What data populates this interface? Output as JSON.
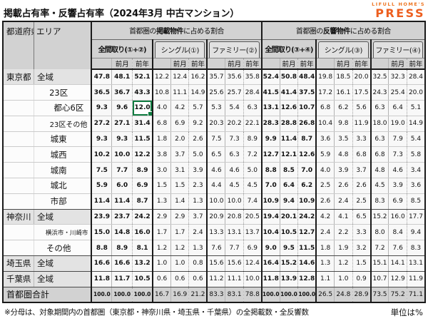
{
  "title": "掲載占有率・反響占有率（2024年3月 中古マンション）",
  "logo": {
    "line1": "LIFULL HOME'S",
    "line2": "PRESS",
    "color": "#ed5f1f"
  },
  "colors": {
    "header_gray": "#d2d2d2",
    "pref_row_gray": "#e3e3e3",
    "total_row_gray": "#d2d2d2",
    "selection_green": "#107c41",
    "brand_orange": "#ee7623"
  },
  "table": {
    "corner": {
      "pref": "都道府県",
      "area": "エリア"
    },
    "sub_cols": [
      "前月",
      "前年"
    ],
    "groups": [
      {
        "pre": "首都圏の",
        "em": "掲載物件",
        "post": "に占める割合",
        "subgroups": [
          "全間取り(①+②)",
          "シングル(①)",
          "ファミリー(②)"
        ]
      },
      {
        "pre": "首都圏の",
        "em": "反響物件",
        "post": "に占める割合",
        "subgroups": [
          "全間取り(③+④)",
          "シングル(③)",
          "ファミリー(④)"
        ]
      }
    ],
    "selected_cell": {
      "row": 2,
      "col": 2
    },
    "rows": [
      {
        "pref": "東京都",
        "area": "全域",
        "style": "pref",
        "values": [
          "47.8",
          "48.1",
          "52.1",
          "12.2",
          "12.4",
          "16.2",
          "35.7",
          "35.6",
          "35.8",
          "52.4",
          "50.8",
          "48.4",
          "19.8",
          "18.5",
          "20.0",
          "32.5",
          "32.3",
          "28.4"
        ]
      },
      {
        "area": "23区",
        "style": "center",
        "values": [
          "36.5",
          "36.7",
          "43.3",
          "10.8",
          "11.1",
          "14.9",
          "25.6",
          "25.7",
          "28.4",
          "41.5",
          "41.4",
          "37.5",
          "17.2",
          "16.1",
          "17.5",
          "24.3",
          "25.4",
          "20.0"
        ]
      },
      {
        "area": "都心6区",
        "style": "right",
        "values": [
          "9.3",
          "9.6",
          "12.0",
          "4.0",
          "4.2",
          "5.7",
          "5.3",
          "5.4",
          "6.3",
          "13.1",
          "12.6",
          "10.7",
          "6.8",
          "6.2",
          "5.6",
          "6.3",
          "6.4",
          "5.1"
        ]
      },
      {
        "area": "23区その他",
        "style": "right-sm",
        "values": [
          "27.2",
          "27.1",
          "31.4",
          "6.8",
          "6.9",
          "9.2",
          "20.3",
          "20.2",
          "22.1",
          "28.3",
          "28.8",
          "26.8",
          "10.4",
          "9.8",
          "11.9",
          "18.0",
          "19.0",
          "14.9"
        ]
      },
      {
        "area": "城東",
        "style": "center",
        "values": [
          "9.3",
          "9.3",
          "11.5",
          "1.8",
          "2.0",
          "2.6",
          "7.5",
          "7.3",
          "8.9",
          "9.9",
          "11.4",
          "8.7",
          "3.6",
          "3.5",
          "3.3",
          "6.3",
          "7.9",
          "5.4"
        ]
      },
      {
        "area": "城西",
        "style": "center",
        "values": [
          "10.2",
          "10.0",
          "12.2",
          "3.8",
          "3.7",
          "5.0",
          "6.5",
          "6.3",
          "7.2",
          "12.7",
          "12.1",
          "12.6",
          "5.9",
          "4.8",
          "6.8",
          "6.8",
          "7.3",
          "5.8"
        ]
      },
      {
        "area": "城南",
        "style": "center",
        "values": [
          "7.5",
          "7.7",
          "8.9",
          "3.0",
          "3.1",
          "3.9",
          "4.6",
          "4.6",
          "5.0",
          "8.8",
          "8.5",
          "7.0",
          "4.0",
          "3.9",
          "3.7",
          "4.8",
          "4.6",
          "3.4"
        ]
      },
      {
        "area": "城北",
        "style": "center",
        "values": [
          "5.9",
          "6.0",
          "6.9",
          "1.5",
          "1.5",
          "2.3",
          "4.4",
          "4.5",
          "4.5",
          "7.0",
          "6.4",
          "6.2",
          "2.5",
          "2.6",
          "2.6",
          "4.5",
          "3.9",
          "3.6"
        ]
      },
      {
        "area": "市部",
        "style": "center",
        "values": [
          "11.4",
          "11.4",
          "8.7",
          "1.3",
          "1.4",
          "1.3",
          "10.0",
          "10.0",
          "7.4",
          "10.9",
          "9.4",
          "10.9",
          "2.6",
          "2.4",
          "2.5",
          "8.3",
          "6.9",
          "8.5"
        ]
      },
      {
        "pref": "神奈川",
        "area": "全域",
        "style": "pref",
        "values": [
          "23.9",
          "23.7",
          "24.2",
          "2.9",
          "2.9",
          "3.7",
          "20.9",
          "20.8",
          "20.5",
          "19.4",
          "20.1",
          "24.2",
          "4.2",
          "4.1",
          "6.5",
          "15.2",
          "16.0",
          "17.7"
        ]
      },
      {
        "area": "横浜市・川崎市",
        "style": "right-xs",
        "values": [
          "15.0",
          "14.8",
          "16.0",
          "1.7",
          "1.7",
          "2.4",
          "13.3",
          "13.1",
          "13.7",
          "10.4",
          "10.5",
          "12.7",
          "2.4",
          "2.2",
          "3.3",
          "8.0",
          "8.4",
          "9.4"
        ]
      },
      {
        "area": "その他",
        "style": "center",
        "values": [
          "8.8",
          "8.9",
          "8.1",
          "1.2",
          "1.2",
          "1.3",
          "7.6",
          "7.7",
          "6.9",
          "9.0",
          "9.5",
          "11.5",
          "1.8",
          "1.9",
          "3.2",
          "7.2",
          "7.6",
          "8.3"
        ]
      },
      {
        "pref": "埼玉県",
        "area": "全域",
        "style": "pref",
        "values": [
          "16.6",
          "16.6",
          "13.2",
          "1.0",
          "1.0",
          "0.8",
          "15.6",
          "15.6",
          "12.4",
          "16.4",
          "15.2",
          "14.6",
          "1.3",
          "1.2",
          "1.5",
          "15.1",
          "14.1",
          "13.1"
        ]
      },
      {
        "pref": "千葉県",
        "area": "全域",
        "style": "pref",
        "values": [
          "11.8",
          "11.7",
          "10.5",
          "0.6",
          "0.6",
          "0.6",
          "11.2",
          "11.1",
          "10.0",
          "11.8",
          "13.9",
          "12.8",
          "1.1",
          "1.0",
          "0.9",
          "10.7",
          "12.9",
          "11.9"
        ]
      },
      {
        "label": "首都圏合計",
        "style": "total",
        "values": [
          "100.0",
          "100.0",
          "100.0",
          "16.7",
          "16.9",
          "21.2",
          "83.3",
          "83.1",
          "78.8",
          "100.0",
          "100.0",
          "100.0",
          "26.5",
          "24.8",
          "28.9",
          "73.5",
          "75.2",
          "71.1"
        ]
      }
    ],
    "block_end_rows": [
      8,
      11,
      12,
      13
    ]
  },
  "footer": {
    "note": "※分母は、対象期間内の首都圏（東京都・神奈川県・埼玉県・千葉県）の全掲載数・全反響数",
    "unit": "単位は%"
  }
}
